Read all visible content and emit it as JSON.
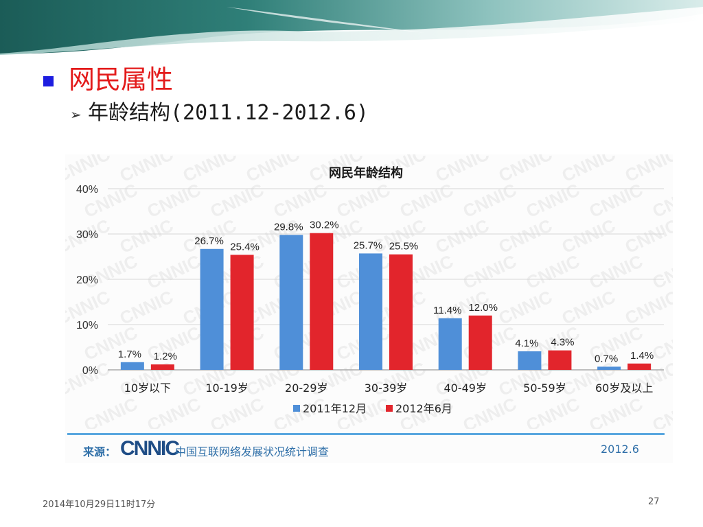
{
  "slide": {
    "heading": "网民属性",
    "subheading": "年龄结构(2011.12-2012.6)",
    "footer_date": "2014年10月29日11时17分",
    "page_number": "27"
  },
  "source": {
    "label": "来源：",
    "logo_text": "CNNIC",
    "name": "中国互联网络发展状况统计调查",
    "date": "2012.6"
  },
  "chart_data": {
    "type": "bar",
    "title": "网民年龄结构",
    "categories": [
      "10岁以下",
      "10-19岁",
      "20-29岁",
      "30-39岁",
      "40-49岁",
      "50-59岁",
      "60岁及以上"
    ],
    "series": [
      {
        "name": "2011年12月",
        "values": [
          1.7,
          26.7,
          29.8,
          25.7,
          11.4,
          4.1,
          0.7
        ],
        "labels": [
          "1.7%",
          "26.7%",
          "29.8%",
          "25.7%",
          "11.4%",
          "4.1%",
          "0.7%"
        ],
        "color": "#4f8fd8"
      },
      {
        "name": "2012年6月",
        "values": [
          1.2,
          25.4,
          30.2,
          25.5,
          12.0,
          4.3,
          1.4
        ],
        "labels": [
          "1.2%",
          "25.4%",
          "30.2%",
          "25.5%",
          "12.0%",
          "4.3%",
          "1.4%"
        ],
        "color": "#e2252c"
      }
    ],
    "ylim": [
      0,
      40
    ],
    "yticks": [
      "0%",
      "10%",
      "20%",
      "30%",
      "40%"
    ],
    "xlabel": "",
    "ylabel": "",
    "grid": true,
    "legend": "bottom"
  },
  "colors": {
    "heading": "#e31b1b",
    "bullet": "#1d1de0",
    "source_text": "#2f6fa8",
    "source_line": "#5aa7df"
  }
}
